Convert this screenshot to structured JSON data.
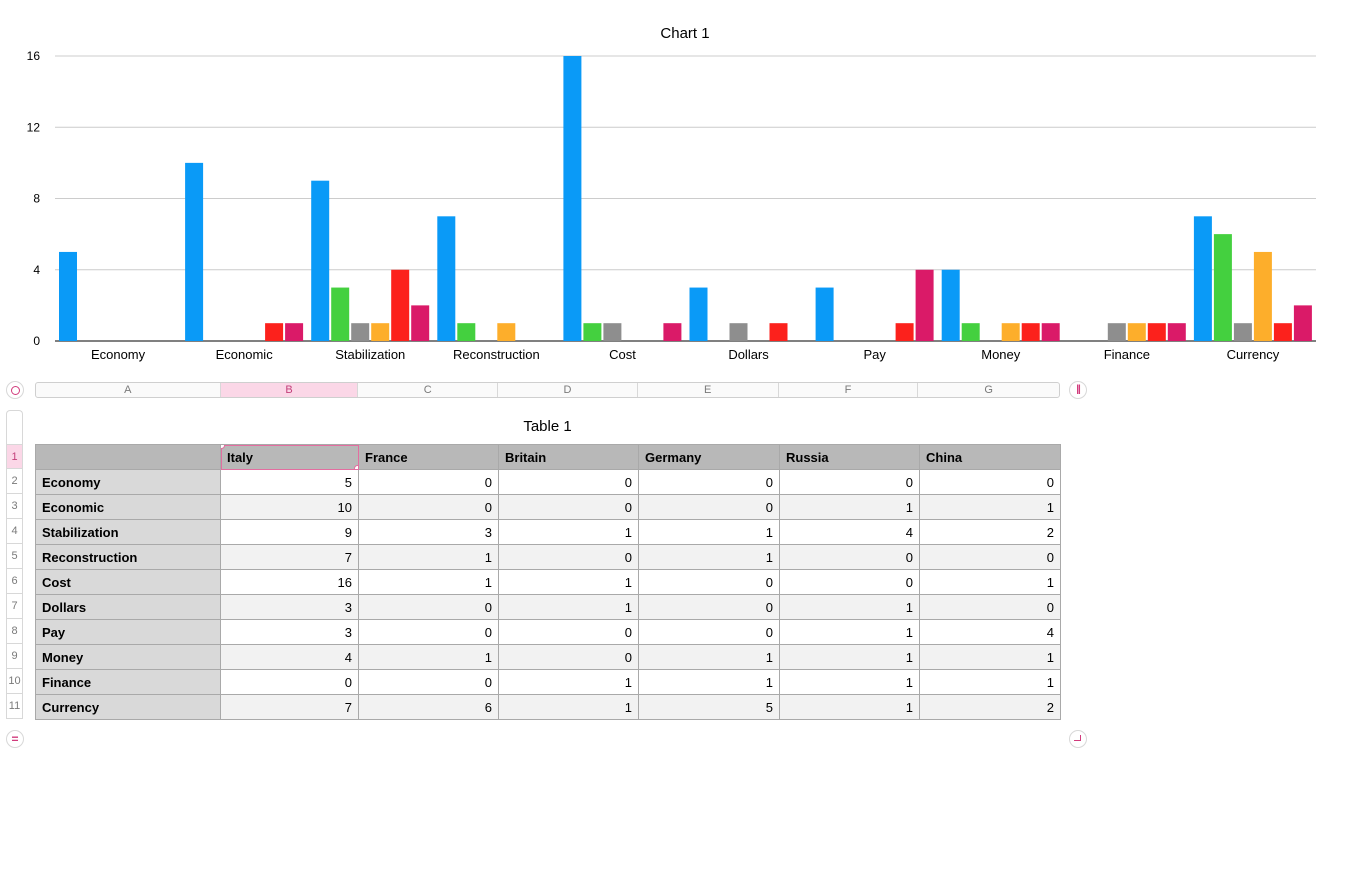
{
  "chart_data": {
    "type": "bar",
    "title": "Chart 1",
    "categories": [
      "Economy",
      "Economic",
      "Stabilization",
      "Reconstruction",
      "Cost",
      "Dollars",
      "Pay",
      "Money",
      "Finance",
      "Currency"
    ],
    "ylim": [
      0,
      16
    ],
    "yticks": [
      0,
      4,
      8,
      12,
      16
    ],
    "grid": true,
    "series": [
      {
        "name": "Italy",
        "color": "#0a9af7",
        "values": [
          5,
          10,
          9,
          7,
          16,
          3,
          3,
          4,
          0,
          7
        ]
      },
      {
        "name": "France",
        "color": "#44d03f",
        "values": [
          0,
          0,
          3,
          1,
          1,
          0,
          0,
          1,
          0,
          6
        ]
      },
      {
        "name": "Britain",
        "color": "#8e8e8e",
        "values": [
          0,
          0,
          1,
          0,
          1,
          1,
          0,
          0,
          1,
          1
        ]
      },
      {
        "name": "Germany",
        "color": "#fdae2b",
        "values": [
          0,
          0,
          1,
          1,
          0,
          0,
          0,
          1,
          1,
          5
        ]
      },
      {
        "name": "Russia",
        "color": "#fc211c",
        "values": [
          0,
          1,
          4,
          0,
          0,
          1,
          1,
          1,
          1,
          1
        ]
      },
      {
        "name": "China",
        "color": "#da1a68",
        "values": [
          0,
          1,
          2,
          0,
          1,
          0,
          4,
          1,
          1,
          2
        ]
      }
    ]
  },
  "table": {
    "title": "Table 1",
    "column_letters": [
      "A",
      "B",
      "C",
      "D",
      "E",
      "F",
      "G"
    ],
    "row_numbers": [
      "1",
      "2",
      "3",
      "4",
      "5",
      "6",
      "7",
      "8",
      "9",
      "10",
      "11"
    ],
    "header": [
      "",
      "Italy",
      "France",
      "Britain",
      "Germany",
      "Russia",
      "China"
    ],
    "rows": [
      [
        "Economy",
        "5",
        "0",
        "0",
        "0",
        "0",
        "0"
      ],
      [
        "Economic",
        "10",
        "0",
        "0",
        "0",
        "1",
        "1"
      ],
      [
        "Stabilization",
        "9",
        "3",
        "1",
        "1",
        "4",
        "2"
      ],
      [
        "Reconstruction",
        "7",
        "1",
        "0",
        "1",
        "0",
        "0"
      ],
      [
        "Cost",
        "16",
        "1",
        "1",
        "0",
        "0",
        "1"
      ],
      [
        "Dollars",
        "3",
        "0",
        "1",
        "0",
        "1",
        "0"
      ],
      [
        "Pay",
        "3",
        "0",
        "0",
        "0",
        "1",
        "4"
      ],
      [
        "Money",
        "4",
        "1",
        "0",
        "1",
        "1",
        "1"
      ],
      [
        "Finance",
        "0",
        "0",
        "1",
        "1",
        "1",
        "1"
      ],
      [
        "Currency",
        "7",
        "6",
        "1",
        "5",
        "1",
        "2"
      ]
    ],
    "selected_column": "B",
    "selected_row": "1",
    "accent_color": "#d13b7c"
  }
}
